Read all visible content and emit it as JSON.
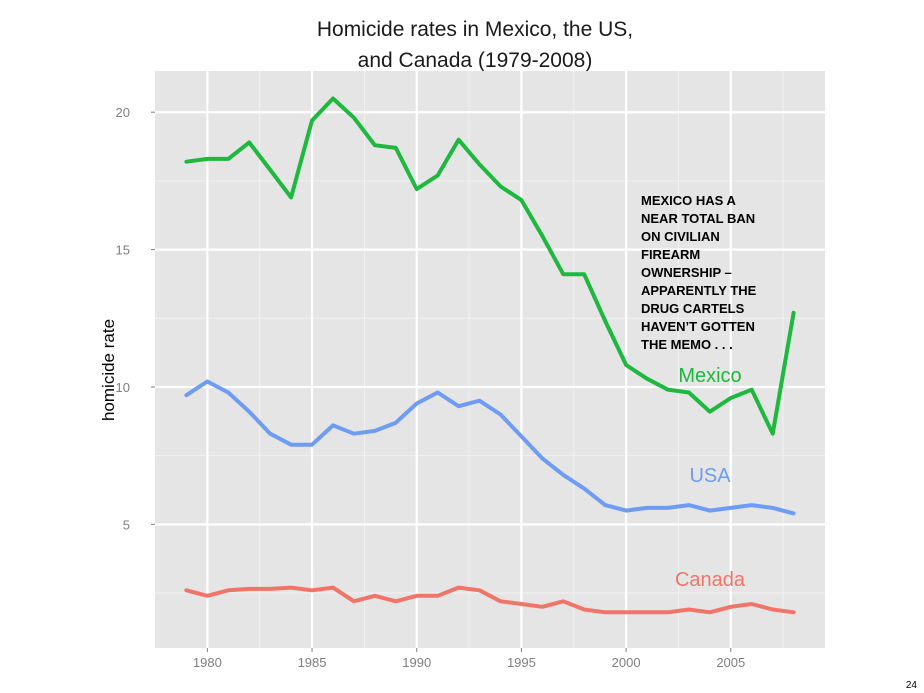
{
  "chart_data": {
    "type": "line",
    "title": [
      "Homicide rates in Mexico, the US,",
      "and Canada (1979-2008)"
    ],
    "xlabel": "",
    "ylabel": "homicide rate",
    "xlim": [
      1977.5,
      2009.5
    ],
    "ylim": [
      0.5,
      21.5
    ],
    "x_ticks": [
      1980,
      1985,
      1990,
      1995,
      2000,
      2005
    ],
    "y_ticks": [
      5,
      10,
      15,
      20
    ],
    "grid": true,
    "x": [
      1979,
      1980,
      1981,
      1982,
      1983,
      1984,
      1985,
      1986,
      1987,
      1988,
      1989,
      1990,
      1991,
      1992,
      1993,
      1994,
      1995,
      1996,
      1997,
      1998,
      1999,
      2000,
      2001,
      2002,
      2003,
      2004,
      2005,
      2006,
      2007,
      2008
    ],
    "series": [
      {
        "name": "Mexico",
        "label": "Mexico",
        "color": "#1db83e",
        "values": [
          18.2,
          18.3,
          18.3,
          18.9,
          17.9,
          16.9,
          19.7,
          20.5,
          19.8,
          18.8,
          18.7,
          17.2,
          17.7,
          19.0,
          18.1,
          17.3,
          16.8,
          15.5,
          14.1,
          14.1,
          12.4,
          10.8,
          10.3,
          9.9,
          9.8,
          9.1,
          9.6,
          9.9,
          8.3,
          12.7
        ]
      },
      {
        "name": "USA",
        "label": "USA",
        "color": "#6d9cf2",
        "values": [
          9.7,
          10.2,
          9.8,
          9.1,
          8.3,
          7.9,
          7.9,
          8.6,
          8.3,
          8.4,
          8.7,
          9.4,
          9.8,
          9.3,
          9.5,
          9.0,
          8.2,
          7.4,
          6.8,
          6.3,
          5.7,
          5.5,
          5.6,
          5.6,
          5.7,
          5.5,
          5.6,
          5.7,
          5.6,
          5.4
        ]
      },
      {
        "name": "Canada",
        "label": "Canada",
        "color": "#f07468",
        "values": [
          2.6,
          2.4,
          2.6,
          2.65,
          2.65,
          2.7,
          2.6,
          2.7,
          2.2,
          2.4,
          2.2,
          2.4,
          2.4,
          2.7,
          2.6,
          2.2,
          2.1,
          2.0,
          2.2,
          1.9,
          1.8,
          1.8,
          1.8,
          1.8,
          1.9,
          1.8,
          2.0,
          2.1,
          1.9,
          1.8
        ]
      }
    ],
    "annotations": [
      "MEXICO HAS A",
      "NEAR TOTAL BAN",
      "ON CIVILIAN",
      "FIREARM",
      "OWNERSHIP –",
      "APPARENTLY THE",
      "DRUG CARTELS",
      "HAVEN’T GOTTEN",
      "THE MEMO . . ."
    ]
  },
  "page_number": "24",
  "colors": {
    "panel_bg": "#e5e5e5",
    "grid_major": "#ffffff",
    "grid_minor": "#f2f2f2"
  }
}
